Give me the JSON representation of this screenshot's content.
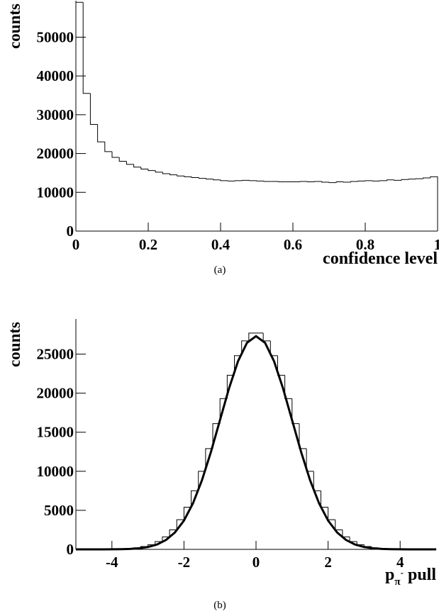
{
  "chart_data": [
    {
      "type": "histogram",
      "ylabel": "counts",
      "xlabel": [
        "confidence level"
      ],
      "caption": "(a)",
      "bins": [
        0,
        0.02,
        0.04,
        0.06,
        0.08,
        0.1,
        0.12,
        0.14,
        0.16,
        0.18,
        0.2,
        0.22,
        0.24,
        0.26,
        0.28,
        0.3,
        0.32,
        0.34,
        0.36,
        0.38,
        0.4,
        0.42,
        0.44,
        0.46,
        0.48,
        0.5,
        0.52,
        0.54,
        0.56,
        0.58,
        0.6,
        0.62,
        0.64,
        0.66,
        0.68,
        0.7,
        0.72,
        0.74,
        0.76,
        0.78,
        0.8,
        0.82,
        0.84,
        0.86,
        0.88,
        0.9,
        0.92,
        0.94,
        0.96,
        0.98,
        1
      ],
      "values": [
        59000,
        35500,
        27500,
        23000,
        20500,
        19000,
        18000,
        17200,
        16500,
        16000,
        15600,
        15200,
        14800,
        14500,
        14200,
        14000,
        13800,
        13600,
        13400,
        13200,
        13000,
        12900,
        13000,
        13100,
        13000,
        12900,
        12800,
        12800,
        12700,
        12700,
        12700,
        12800,
        12700,
        12800,
        12600,
        12500,
        12700,
        12600,
        12800,
        12900,
        13000,
        12900,
        13000,
        13200,
        13100,
        13300,
        13400,
        13500,
        13700,
        14000
      ],
      "color": "#000000",
      "xlim": [
        0,
        1
      ],
      "xticks": [
        0,
        0.2,
        0.4,
        0.6,
        0.8,
        1
      ],
      "ylim": [
        0,
        59400
      ],
      "yticks": [
        0,
        10000,
        20000,
        30000,
        40000,
        50000
      ]
    },
    {
      "type": "histogram",
      "ylabel": "counts",
      "xlabel": [
        "p",
        "π",
        "-",
        " pull"
      ],
      "caption": "(b)",
      "bins": [
        -5,
        -4.8,
        -4.6,
        -4.4,
        -4.2,
        -4,
        -3.8,
        -3.6,
        -3.4,
        -3.2,
        -3,
        -2.8,
        -2.6,
        -2.4,
        -2.2,
        -2,
        -1.8,
        -1.6,
        -1.4,
        -1.2,
        -1,
        -0.8,
        -0.6,
        -0.4,
        -0.2,
        0,
        0.2,
        0.4,
        0.6,
        0.8,
        1,
        1.2,
        1.4,
        1.6,
        1.8,
        2,
        2.2,
        2.4,
        2.6,
        2.8,
        3,
        3.2,
        3.4,
        3.6,
        3.8,
        4,
        4.2,
        4.4,
        4.6,
        4.8,
        5
      ],
      "values": [
        5,
        8,
        10,
        15,
        20,
        30,
        60,
        110,
        200,
        360,
        600,
        1000,
        1600,
        2500,
        3800,
        5400,
        7500,
        10000,
        12900,
        16100,
        19300,
        22300,
        24800,
        26700,
        27700,
        27700,
        26700,
        24800,
        22300,
        19300,
        16100,
        12900,
        10000,
        7500,
        5400,
        3800,
        2500,
        1600,
        1000,
        600,
        360,
        200,
        110,
        60,
        30,
        20,
        15,
        10,
        8,
        5
      ],
      "color": "#000000",
      "fit": {
        "color": "#000000",
        "x": [
          -5,
          -4.75,
          -4.5,
          -4.25,
          -4,
          -3.75,
          -3.5,
          -3.25,
          -3,
          -2.75,
          -2.5,
          -2.25,
          -2,
          -1.75,
          -1.5,
          -1.25,
          -1,
          -0.75,
          -0.5,
          -0.25,
          0,
          0.25,
          0.5,
          0.75,
          1,
          1.25,
          1.5,
          1.75,
          2,
          2.25,
          2.5,
          2.75,
          3,
          3.25,
          3.5,
          3.75,
          4,
          4.25,
          4.5,
          4.75,
          5
        ],
        "values": [
          0,
          0,
          1,
          3,
          9,
          24,
          60,
          139,
          303,
          620,
          1200,
          2170,
          3690,
          5900,
          8860,
          12500,
          16560,
          20610,
          24090,
          26460,
          27300,
          26460,
          24090,
          20610,
          16560,
          12500,
          8860,
          5900,
          3690,
          2170,
          1200,
          620,
          303,
          139,
          60,
          24,
          9,
          3,
          1,
          0,
          0
        ]
      },
      "xlim": [
        -5,
        5
      ],
      "xticks": [
        -4,
        -2,
        0,
        2,
        4
      ],
      "ylim": [
        0,
        29500
      ],
      "yticks": [
        0,
        5000,
        10000,
        15000,
        20000,
        25000
      ]
    }
  ]
}
